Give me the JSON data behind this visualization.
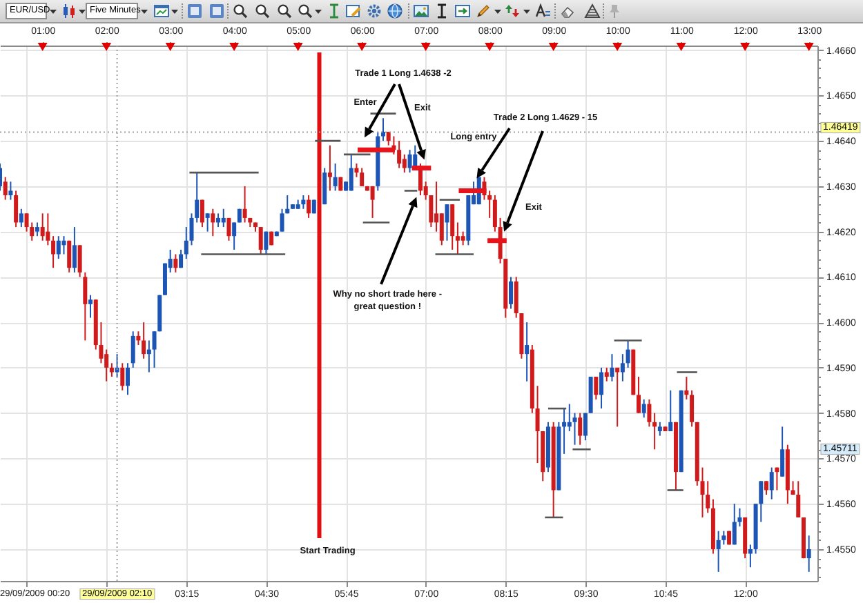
{
  "chart_data": {
    "type": "candlestick",
    "title": "EUR/USD",
    "subtitle": "Five Minutes",
    "x": [
      "2009-09-29T00:20",
      "2009-09-29T00:25",
      "2009-09-29T00:30",
      "2009-09-29T00:35",
      "2009-09-29T00:40",
      "2009-09-29T00:45",
      "2009-09-29T00:50",
      "2009-09-29T00:55",
      "2009-09-29T01:00",
      "2009-09-29T01:05",
      "2009-09-29T01:10",
      "2009-09-29T01:15",
      "2009-09-29T01:20",
      "2009-09-29T01:25",
      "2009-09-29T01:30",
      "2009-09-29T01:35",
      "2009-09-29T01:40",
      "2009-09-29T01:45",
      "2009-09-29T01:50",
      "2009-09-29T01:55",
      "2009-09-29T02:00",
      "2009-09-29T02:05",
      "2009-09-29T02:10",
      "2009-09-29T02:15",
      "2009-09-29T02:20",
      "2009-09-29T02:25",
      "2009-09-29T02:30",
      "2009-09-29T02:35",
      "2009-09-29T02:40",
      "2009-09-29T02:45",
      "2009-09-29T02:50",
      "2009-09-29T02:55",
      "2009-09-29T03:00",
      "2009-09-29T03:05",
      "2009-09-29T03:10",
      "2009-09-29T03:15",
      "2009-09-29T03:20",
      "2009-09-29T03:25",
      "2009-09-29T03:30",
      "2009-09-29T03:35",
      "2009-09-29T03:40",
      "2009-09-29T03:45",
      "2009-09-29T03:50",
      "2009-09-29T03:55",
      "2009-09-29T04:00",
      "2009-09-29T04:05",
      "2009-09-29T04:10",
      "2009-09-29T04:15",
      "2009-09-29T04:20",
      "2009-09-29T04:25",
      "2009-09-29T04:30",
      "2009-09-29T04:35",
      "2009-09-29T04:40",
      "2009-09-29T04:45",
      "2009-09-29T04:50",
      "2009-09-29T04:55",
      "2009-09-29T05:00",
      "2009-09-29T05:05",
      "2009-09-29T05:10",
      "2009-09-29T05:15",
      "2009-09-29T05:25",
      "2009-09-29T05:30",
      "2009-09-29T05:35",
      "2009-09-29T05:40",
      "2009-09-29T05:45",
      "2009-09-29T05:50",
      "2009-09-29T05:55",
      "2009-09-29T06:00",
      "2009-09-29T06:05",
      "2009-09-29T06:10",
      "2009-09-29T06:15",
      "2009-09-29T06:20",
      "2009-09-29T06:25",
      "2009-09-29T06:30",
      "2009-09-29T06:35",
      "2009-09-29T06:40",
      "2009-09-29T06:45",
      "2009-09-29T06:50",
      "2009-09-29T06:55",
      "2009-09-29T07:00",
      "2009-09-29T07:05",
      "2009-09-29T07:10",
      "2009-09-29T07:15",
      "2009-09-29T07:20",
      "2009-09-29T07:25",
      "2009-09-29T07:30",
      "2009-09-29T07:35",
      "2009-09-29T07:40",
      "2009-09-29T07:45",
      "2009-09-29T07:50",
      "2009-09-29T07:55",
      "2009-09-29T08:00",
      "2009-09-29T08:05",
      "2009-09-29T08:10",
      "2009-09-29T08:15",
      "2009-09-29T08:20",
      "2009-09-29T08:25",
      "2009-09-29T08:30",
      "2009-09-29T08:35",
      "2009-09-29T08:40",
      "2009-09-29T08:45",
      "2009-09-29T08:50",
      "2009-09-29T08:55",
      "2009-09-29T09:00",
      "2009-09-29T09:05",
      "2009-09-29T09:10",
      "2009-09-29T09:15",
      "2009-09-29T09:20",
      "2009-09-29T09:25",
      "2009-09-29T09:30",
      "2009-09-29T09:35",
      "2009-09-29T09:40",
      "2009-09-29T09:45",
      "2009-09-29T09:50",
      "2009-09-29T09:55",
      "2009-09-29T10:00",
      "2009-09-29T10:05",
      "2009-09-29T10:10",
      "2009-09-29T10:15",
      "2009-09-29T10:20",
      "2009-09-29T10:25",
      "2009-09-29T10:30",
      "2009-09-29T10:35",
      "2009-09-29T10:40",
      "2009-09-29T10:45",
      "2009-09-29T10:50",
      "2009-09-29T10:55",
      "2009-09-29T11:00",
      "2009-09-29T11:05",
      "2009-09-29T11:10",
      "2009-09-29T11:15",
      "2009-09-29T11:20",
      "2009-09-29T11:25",
      "2009-09-29T11:30",
      "2009-09-29T11:35",
      "2009-09-29T11:40",
      "2009-09-29T11:45",
      "2009-09-29T11:50",
      "2009-09-29T11:55",
      "2009-09-29T12:00",
      "2009-09-29T12:05",
      "2009-09-29T12:10",
      "2009-09-29T12:15",
      "2009-09-29T12:20",
      "2009-09-29T12:25",
      "2009-09-29T12:30",
      "2009-09-29T12:35",
      "2009-09-29T12:40",
      "2009-09-29T12:45",
      "2009-09-29T12:50",
      "2009-09-29T12:55",
      "2009-09-29T13:00"
    ],
    "ohlc": [
      [
        1.463,
        1.4635,
        1.4629,
        1.4634
      ],
      [
        1.4631,
        1.4632,
        1.4627,
        1.4628
      ],
      [
        1.4628,
        1.4631,
        1.4627,
        1.4629
      ],
      [
        1.4628,
        1.4629,
        1.4621,
        1.4622
      ],
      [
        1.4622,
        1.4625,
        1.4621,
        1.4624
      ],
      [
        1.4624,
        1.4624,
        1.462,
        1.4621
      ],
      [
        1.4621,
        1.4622,
        1.4618,
        1.4619
      ],
      [
        1.462,
        1.4622,
        1.4619,
        1.4621
      ],
      [
        1.4621,
        1.4624,
        1.4618,
        1.4619
      ],
      [
        1.462,
        1.4624,
        1.4617,
        1.4618
      ],
      [
        1.4618,
        1.4619,
        1.4612,
        1.4615
      ],
      [
        1.4615,
        1.4619,
        1.4614,
        1.4618
      ],
      [
        1.4617,
        1.4619,
        1.4615,
        1.4618
      ],
      [
        1.4618,
        1.4618,
        1.4611,
        1.4612
      ],
      [
        1.4612,
        1.4621,
        1.4611,
        1.4617
      ],
      [
        1.4617,
        1.4617,
        1.461,
        1.4611
      ],
      [
        1.461,
        1.4611,
        1.4596,
        1.4604
      ],
      [
        1.4604,
        1.4606,
        1.4601,
        1.4605
      ],
      [
        1.4605,
        1.4605,
        1.4594,
        1.4595
      ],
      [
        1.4595,
        1.46,
        1.4591,
        1.4592
      ],
      [
        1.4593,
        1.4594,
        1.4587,
        1.459
      ],
      [
        1.459,
        1.4591,
        1.4588,
        1.4589
      ],
      [
        1.4589,
        1.4593,
        1.4588,
        1.459
      ],
      [
        1.459,
        1.4591,
        1.4585,
        1.4586
      ],
      [
        1.4586,
        1.4591,
        1.4584,
        1.459
      ],
      [
        1.4591,
        1.4598,
        1.459,
        1.4597
      ],
      [
        1.4597,
        1.4598,
        1.4595,
        1.4596
      ],
      [
        1.4596,
        1.46,
        1.4592,
        1.4593
      ],
      [
        1.4593,
        1.4596,
        1.4589,
        1.4594
      ],
      [
        1.4594,
        1.4598,
        1.459,
        1.4598
      ],
      [
        1.4598,
        1.4606,
        1.4598,
        1.4606
      ],
      [
        1.4606,
        1.4613,
        1.4606,
        1.4613
      ],
      [
        1.4612,
        1.4616,
        1.4611,
        1.4614
      ],
      [
        1.4614,
        1.4615,
        1.4611,
        1.4612
      ],
      [
        1.4612,
        1.4616,
        1.4612,
        1.4615
      ],
      [
        1.4615,
        1.4621,
        1.4614,
        1.4618
      ],
      [
        1.4618,
        1.4624,
        1.4617,
        1.4623
      ],
      [
        1.4623,
        1.4633,
        1.4622,
        1.4627
      ],
      [
        1.4627,
        1.4627,
        1.4621,
        1.4622
      ],
      [
        1.4623,
        1.4624,
        1.462,
        1.4624
      ],
      [
        1.4624,
        1.4625,
        1.4619,
        1.4622
      ],
      [
        1.4622,
        1.4624,
        1.4621,
        1.4623
      ],
      [
        1.4622,
        1.4625,
        1.4621,
        1.4623
      ],
      [
        1.4623,
        1.4623,
        1.4618,
        1.4619
      ],
      [
        1.4619,
        1.4622,
        1.4616,
        1.4622
      ],
      [
        1.4622,
        1.4625,
        1.4622,
        1.4625
      ],
      [
        1.4625,
        1.463,
        1.4622,
        1.4623
      ],
      [
        1.4623,
        1.4623,
        1.4621,
        1.4622
      ],
      [
        1.4622,
        1.4622,
        1.462,
        1.4621
      ],
      [
        1.4621,
        1.4621,
        1.4615,
        1.4616
      ],
      [
        1.4616,
        1.462,
        1.4615,
        1.462
      ],
      [
        1.462,
        1.462,
        1.4617,
        1.4617
      ],
      [
        1.4619,
        1.462,
        1.4619,
        1.462
      ],
      [
        1.462,
        1.4625,
        1.462,
        1.4624
      ],
      [
        1.4624,
        1.4628,
        1.4624,
        1.4625
      ],
      [
        1.4625,
        1.4626,
        1.4625,
        1.4626
      ],
      [
        1.4625,
        1.4627,
        1.4625,
        1.4626
      ],
      [
        1.4626,
        1.4628,
        1.4625,
        1.4627
      ],
      [
        1.4627,
        1.4628,
        1.4623,
        1.4624
      ],
      [
        1.4624,
        1.4627,
        1.4624,
        1.4627
      ],
      [
        1.4626,
        1.4634,
        1.4626,
        1.4633
      ],
      [
        1.4633,
        1.4639,
        1.4629,
        1.4632
      ],
      [
        1.463,
        1.4635,
        1.4629,
        1.4632
      ],
      [
        1.4632,
        1.4632,
        1.4629,
        1.4629
      ],
      [
        1.4629,
        1.4631,
        1.4629,
        1.4631
      ],
      [
        1.4629,
        1.4637,
        1.4629,
        1.4634
      ],
      [
        1.4634,
        1.4635,
        1.4632,
        1.4633
      ],
      [
        1.4633,
        1.4634,
        1.463,
        1.463
      ],
      [
        1.463,
        1.463,
        1.4629,
        1.4629
      ],
      [
        1.463,
        1.463,
        1.4623,
        1.4627
      ],
      [
        1.463,
        1.4642,
        1.4629,
        1.4641
      ],
      [
        1.4641,
        1.4645,
        1.464,
        1.4642
      ],
      [
        1.4642,
        1.4642,
        1.4639,
        1.464
      ],
      [
        1.4639,
        1.4641,
        1.4637,
        1.4638
      ],
      [
        1.4638,
        1.464,
        1.4634,
        1.4635
      ],
      [
        1.4636,
        1.4637,
        1.4633,
        1.4634
      ],
      [
        1.4634,
        1.4638,
        1.4633,
        1.4637
      ],
      [
        1.4634,
        1.4639,
        1.4634,
        1.4637
      ],
      [
        1.4634,
        1.4635,
        1.4628,
        1.4629
      ],
      [
        1.463,
        1.4631,
        1.4627,
        1.4628
      ],
      [
        1.4628,
        1.4628,
        1.4621,
        1.4622
      ],
      [
        1.4624,
        1.4631,
        1.462,
        1.4622
      ],
      [
        1.4624,
        1.4624,
        1.4617,
        1.4618
      ],
      [
        1.4622,
        1.4626,
        1.4618,
        1.4626
      ],
      [
        1.4626,
        1.4626,
        1.4616,
        1.4619
      ],
      [
        1.4619,
        1.4622,
        1.4615,
        1.4618
      ],
      [
        1.4619,
        1.462,
        1.4617,
        1.4618
      ],
      [
        1.4618,
        1.4628,
        1.4617,
        1.4628
      ],
      [
        1.4626,
        1.4631,
        1.4626,
        1.4628
      ],
      [
        1.4626,
        1.4632,
        1.4626,
        1.4632
      ],
      [
        1.4631,
        1.4632,
        1.4627,
        1.4628
      ],
      [
        1.4628,
        1.4629,
        1.4623,
        1.4627
      ],
      [
        1.4627,
        1.4628,
        1.462,
        1.4621
      ],
      [
        1.4621,
        1.4623,
        1.4613,
        1.4614
      ],
      [
        1.4614,
        1.4614,
        1.4601,
        1.4603
      ],
      [
        1.4604,
        1.461,
        1.4603,
        1.4609
      ],
      [
        1.4609,
        1.461,
        1.4601,
        1.4602
      ],
      [
        1.4602,
        1.4602,
        1.4592,
        1.4593
      ],
      [
        1.4593,
        1.46,
        1.4587,
        1.4595
      ],
      [
        1.4594,
        1.4595,
        1.458,
        1.4581
      ],
      [
        1.4581,
        1.4586,
        1.4569,
        1.4576
      ],
      [
        1.4576,
        1.4576,
        1.4565,
        1.4567
      ],
      [
        1.4568,
        1.4578,
        1.4567,
        1.4577
      ],
      [
        1.4577,
        1.4578,
        1.4557,
        1.4563
      ],
      [
        1.4563,
        1.4578,
        1.4563,
        1.4577
      ],
      [
        1.4577,
        1.4581,
        1.4571,
        1.4578
      ],
      [
        1.4577,
        1.4582,
        1.4576,
        1.4578
      ],
      [
        1.4578,
        1.458,
        1.4573,
        1.4579
      ],
      [
        1.4579,
        1.458,
        1.4573,
        1.4575
      ],
      [
        1.4575,
        1.458,
        1.4574,
        1.458
      ],
      [
        1.458,
        1.4588,
        1.458,
        1.4588
      ],
      [
        1.4588,
        1.4588,
        1.4583,
        1.4584
      ],
      [
        1.4584,
        1.459,
        1.4581,
        1.4589
      ],
      [
        1.4589,
        1.459,
        1.4587,
        1.4588
      ],
      [
        1.4588,
        1.4593,
        1.4587,
        1.459
      ],
      [
        1.459,
        1.459,
        1.4577,
        1.4589
      ],
      [
        1.4589,
        1.4593,
        1.4587,
        1.4591
      ],
      [
        1.4591,
        1.4596,
        1.459,
        1.4594
      ],
      [
        1.4594,
        1.4594,
        1.4584,
        1.4584
      ],
      [
        1.4584,
        1.4588,
        1.458,
        1.458
      ],
      [
        1.458,
        1.4583,
        1.4579,
        1.4582
      ],
      [
        1.4582,
        1.4583,
        1.4577,
        1.4578
      ],
      [
        1.4578,
        1.458,
        1.4572,
        1.4577
      ],
      [
        1.4576,
        1.4578,
        1.4575,
        1.4577
      ],
      [
        1.4577,
        1.4577,
        1.4576,
        1.4576
      ],
      [
        1.4576,
        1.4585,
        1.4576,
        1.4578
      ],
      [
        1.4578,
        1.4578,
        1.4563,
        1.4567
      ],
      [
        1.4567,
        1.4585,
        1.4567,
        1.4585
      ],
      [
        1.4585,
        1.4588,
        1.4583,
        1.4584
      ],
      [
        1.4584,
        1.4585,
        1.4577,
        1.4578
      ],
      [
        1.4578,
        1.4578,
        1.4564,
        1.4565
      ],
      [
        1.4565,
        1.4568,
        1.4557,
        1.4562
      ],
      [
        1.4562,
        1.4565,
        1.4558,
        1.4559
      ],
      [
        1.4559,
        1.4561,
        1.4549,
        1.455
      ],
      [
        1.455,
        1.4554,
        1.4545,
        1.4552
      ],
      [
        1.4552,
        1.4554,
        1.4551,
        1.4553
      ],
      [
        1.4554,
        1.4554,
        1.4551,
        1.4551
      ],
      [
        1.4551,
        1.456,
        1.4551,
        1.4556
      ],
      [
        1.4556,
        1.4559,
        1.4555,
        1.4557
      ],
      [
        1.4557,
        1.4557,
        1.4548,
        1.4549
      ],
      [
        1.4549,
        1.4551,
        1.4546,
        1.455
      ],
      [
        1.455,
        1.456,
        1.4549,
        1.456
      ],
      [
        1.456,
        1.4565,
        1.4556,
        1.4565
      ],
      [
        1.4565,
        1.4565,
        1.4562,
        1.4563
      ],
      [
        1.4563,
        1.4568,
        1.4561,
        1.4567
      ],
      [
        1.4568,
        1.4568,
        1.4563,
        1.4567
      ],
      [
        1.4566,
        1.4577,
        1.4566,
        1.4572
      ],
      [
        1.4572,
        1.4573,
        1.456,
        1.4563
      ],
      [
        1.4563,
        1.4565,
        1.4562,
        1.4562
      ],
      [
        1.4562,
        1.4565,
        1.4557,
        1.4557
      ],
      [
        1.4557,
        1.4557,
        1.4548,
        1.4548
      ],
      [
        1.4548,
        1.4553,
        1.4545,
        1.455
      ]
    ],
    "colors": [
      "#1d55b5",
      "#cf1b1b",
      "#1d55b5",
      "#cf1b1b",
      "#1d55b5",
      "#cf1b1b",
      "#cf1b1b",
      "#1d55b5",
      "#cf1b1b",
      "#cf1b1b",
      "#cf1b1b",
      "#1d55b5",
      "#1d55b5",
      "#cf1b1b",
      "#1d55b5",
      "#cf1b1b",
      "#cf1b1b",
      "#1d55b5",
      "#cf1b1b",
      "#cf1b1b",
      "#cf1b1b",
      "#cf1b1b",
      "#1d55b5",
      "#cf1b1b",
      "#1d55b5",
      "#1d55b5",
      "#cf1b1b",
      "#cf1b1b",
      "#1d55b5",
      "#1d55b5",
      "#1d55b5",
      "#1d55b5",
      "#1d55b5",
      "#cf1b1b",
      "#1d55b5",
      "#1d55b5",
      "#1d55b5",
      "#1d55b5",
      "#cf1b1b",
      "#1d55b5",
      "#cf1b1b",
      "#1d55b5",
      "#1d55b5",
      "#cf1b1b",
      "#1d55b5",
      "#1d55b5",
      "#cf1b1b",
      "#cf1b1b",
      "#cf1b1b",
      "#cf1b1b",
      "#1d55b5",
      "#cf1b1b",
      "#1d55b5",
      "#1d55b5",
      "#1d55b5",
      "#1d55b5",
      "#1d55b5",
      "#1d55b5",
      "#cf1b1b",
      "#1d55b5",
      "#1d55b5",
      "#cf1b1b",
      "#1d55b5",
      "#cf1b1b",
      "#1d55b5",
      "#1d55b5",
      "#cf1b1b",
      "#cf1b1b",
      "#cf1b1b",
      "#cf1b1b",
      "#1d55b5",
      "#1d55b5",
      "#cf1b1b",
      "#cf1b1b",
      "#cf1b1b",
      "#cf1b1b",
      "#1d55b5",
      "#1d55b5",
      "#cf1b1b",
      "#cf1b1b",
      "#cf1b1b",
      "#cf1b1b",
      "#cf1b1b",
      "#1d55b5",
      "#cf1b1b",
      "#cf1b1b",
      "#cf1b1b",
      "#1d55b5",
      "#1d55b5",
      "#1d55b5",
      "#cf1b1b",
      "#cf1b1b",
      "#cf1b1b",
      "#cf1b1b",
      "#cf1b1b",
      "#1d55b5",
      "#cf1b1b",
      "#cf1b1b",
      "#1d55b5",
      "#cf1b1b",
      "#cf1b1b",
      "#cf1b1b",
      "#1d55b5",
      "#cf1b1b",
      "#1d55b5",
      "#1d55b5",
      "#1d55b5",
      "#1d55b5",
      "#cf1b1b",
      "#1d55b5",
      "#1d55b5",
      "#cf1b1b",
      "#1d55b5",
      "#cf1b1b",
      "#1d55b5",
      "#cf1b1b",
      "#1d55b5",
      "#1d55b5",
      "#cf1b1b",
      "#cf1b1b",
      "#1d55b5",
      "#cf1b1b",
      "#cf1b1b",
      "#1d55b5",
      "#cf1b1b",
      "#1d55b5",
      "#cf1b1b",
      "#1d55b5",
      "#cf1b1b",
      "#cf1b1b",
      "#cf1b1b",
      "#cf1b1b",
      "#cf1b1b",
      "#cf1b1b",
      "#1d55b5",
      "#1d55b5",
      "#cf1b1b",
      "#1d55b5",
      "#1d55b5",
      "#cf1b1b",
      "#1d55b5",
      "#1d55b5",
      "#1d55b5",
      "#cf1b1b",
      "#1d55b5",
      "#cf1b1b",
      "#1d55b5",
      "#cf1b1b",
      "#cf1b1b",
      "#cf1b1b",
      "#cf1b1b",
      "#1d55b5"
    ],
    "series": [
      {
        "type": "line",
        "color": "#e8141c",
        "x": [
          "2009-09-29T05:56",
          "2009-09-29T06:31"
        ],
        "values": [
          1.4638,
          1.4638
        ]
      },
      {
        "type": "line",
        "color": "#e8141c",
        "x": [
          "2009-09-29T06:47",
          "2009-09-29T07:05"
        ],
        "values": [
          1.4634,
          1.4634
        ]
      },
      {
        "type": "line",
        "color": "#e8141c",
        "x": [
          "2009-09-29T07:31",
          "2009-09-29T07:57"
        ],
        "values": [
          1.4629,
          1.4629
        ]
      },
      {
        "type": "line",
        "color": "#e8141c",
        "x": [
          "2009-09-29T07:58",
          "2009-09-29T08:16"
        ],
        "values": [
          1.4618,
          1.4618
        ]
      },
      {
        "type": "line",
        "color": "#555555",
        "x": [
          "2009-09-29T03:18",
          "2009-09-29T04:23"
        ],
        "values": [
          1.4633,
          1.4633
        ]
      },
      {
        "type": "line",
        "color": "#555555",
        "x": [
          "2009-09-29T03:29",
          "2009-09-29T04:48"
        ],
        "values": [
          1.4615,
          1.4615
        ]
      },
      {
        "type": "line",
        "color": "#555555",
        "x": [
          "2009-09-29T05:16",
          "2009-09-29T05:40"
        ],
        "values": [
          1.464,
          1.464
        ]
      },
      {
        "type": "line",
        "color": "#555555",
        "x": [
          "2009-09-29T05:43",
          "2009-09-29T06:08"
        ],
        "values": [
          1.4637,
          1.4637
        ]
      },
      {
        "type": "line",
        "color": "#555555",
        "x": [
          "2009-09-29T06:08",
          "2009-09-29T06:32"
        ],
        "values": [
          1.4646,
          1.4646
        ]
      },
      {
        "type": "line",
        "color": "#555555",
        "x": [
          "2009-09-29T06:01",
          "2009-09-29T06:26"
        ],
        "values": [
          1.4622,
          1.4622
        ]
      },
      {
        "type": "line",
        "color": "#555555",
        "x": [
          "2009-09-29T06:40",
          "2009-09-29T06:52"
        ],
        "values": [
          1.4629,
          1.4629
        ]
      },
      {
        "type": "line",
        "color": "#555555",
        "x": [
          "2009-09-29T07:13",
          "2009-09-29T07:32"
        ],
        "values": [
          1.4627,
          1.4627
        ]
      },
      {
        "type": "line",
        "color": "#555555",
        "x": [
          "2009-09-29T07:09",
          "2009-09-29T07:45"
        ],
        "values": [
          1.4615,
          1.4615
        ]
      },
      {
        "type": "line",
        "color": "#555555",
        "x": [
          "2009-09-29T08:55",
          "2009-09-29T09:12"
        ],
        "values": [
          1.4581,
          1.4581
        ]
      },
      {
        "type": "line",
        "color": "#555555",
        "x": [
          "2009-09-29T08:52",
          "2009-09-29T09:09"
        ],
        "values": [
          1.4557,
          1.4557
        ]
      },
      {
        "type": "line",
        "color": "#555555",
        "x": [
          "2009-09-29T09:18",
          "2009-09-29T09:35"
        ],
        "values": [
          1.4572,
          1.4572
        ]
      },
      {
        "type": "line",
        "color": "#555555",
        "x": [
          "2009-09-29T09:57",
          "2009-09-29T10:23"
        ],
        "values": [
          1.4596,
          1.4596
        ]
      },
      {
        "type": "line",
        "color": "#555555",
        "x": [
          "2009-09-29T10:56",
          "2009-09-29T11:15"
        ],
        "values": [
          1.4589,
          1.4589
        ]
      },
      {
        "type": "line",
        "color": "#555555",
        "x": [
          "2009-09-29T10:47",
          "2009-09-29T11:02"
        ],
        "values": [
          1.4563,
          1.4563
        ]
      }
    ],
    "xlim": [
      "2009-09-29T00:20",
      "2009-09-29T13:08"
    ],
    "xticks": [
      {
        "value": "2009-09-29T00:45",
        "label": null
      },
      {
        "value": "2009-09-29T02:00",
        "label": null
      },
      {
        "value": "2009-09-29T03:15",
        "label": "03:15"
      },
      {
        "value": "2009-09-29T04:30",
        "label": "04:30"
      },
      {
        "value": "2009-09-29T05:45",
        "label": "05:45"
      },
      {
        "value": "2009-09-29T07:00",
        "label": "07:00"
      },
      {
        "value": "2009-09-29T08:15",
        "label": "08:15"
      },
      {
        "value": "2009-09-29T09:30",
        "label": "09:30"
      },
      {
        "value": "2009-09-29T10:45",
        "label": "10:45"
      },
      {
        "value": "2009-09-29T12:00",
        "label": "12:00"
      }
    ],
    "x2lim": [
      "2009-09-29T00:20",
      "2009-09-29T13:08"
    ],
    "x2ticks": [
      {
        "value": "2009-09-29T01:00",
        "label": "01:00"
      },
      {
        "value": "2009-09-29T02:00",
        "label": "02:00"
      },
      {
        "value": "2009-09-29T03:00",
        "label": "03:00"
      },
      {
        "value": "2009-09-29T04:00",
        "label": "04:00"
      },
      {
        "value": "2009-09-29T05:00",
        "label": "05:00"
      },
      {
        "value": "2009-09-29T06:00",
        "label": "06:00"
      },
      {
        "value": "2009-09-29T07:00",
        "label": "07:00"
      },
      {
        "value": "2009-09-29T08:00",
        "label": "08:00"
      },
      {
        "value": "2009-09-29T09:00",
        "label": "09:00"
      },
      {
        "value": "2009-09-29T10:00",
        "label": "10:00"
      },
      {
        "value": "2009-09-29T11:00",
        "label": "11:00"
      },
      {
        "value": "2009-09-29T12:00",
        "label": "12:00"
      },
      {
        "value": "2009-09-29T13:00",
        "label": "13:00"
      }
    ],
    "ylim": [
      1.4543,
      1.4661
    ],
    "yticks": [
      {
        "value": 1.4544,
        "label": null
      },
      {
        "value": 1.4546,
        "label": null
      },
      {
        "value": 1.4548,
        "label": null
      },
      {
        "value": 1.455,
        "label": "1.4550"
      },
      {
        "value": 1.4552,
        "label": null
      },
      {
        "value": 1.4554,
        "label": null
      },
      {
        "value": 1.4556,
        "label": null
      },
      {
        "value": 1.4558,
        "label": null
      },
      {
        "value": 1.456,
        "label": "1.4560"
      },
      {
        "value": 1.4562,
        "label": null
      },
      {
        "value": 1.4564,
        "label": null
      },
      {
        "value": 1.4566,
        "label": null
      },
      {
        "value": 1.4568,
        "label": null
      },
      {
        "value": 1.457,
        "label": "1.4570"
      },
      {
        "value": 1.4572,
        "label": null
      },
      {
        "value": 1.4574,
        "label": null
      },
      {
        "value": 1.4576,
        "label": null
      },
      {
        "value": 1.4578,
        "label": null
      },
      {
        "value": 1.458,
        "label": "1.4580"
      },
      {
        "value": 1.4582,
        "label": null
      },
      {
        "value": 1.4584,
        "label": null
      },
      {
        "value": 1.4586,
        "label": null
      },
      {
        "value": 1.4588,
        "label": null
      },
      {
        "value": 1.459,
        "label": "1.4590"
      },
      {
        "value": 1.4592,
        "label": null
      },
      {
        "value": 1.4594,
        "label": null
      },
      {
        "value": 1.4596,
        "label": null
      },
      {
        "value": 1.4598,
        "label": null
      },
      {
        "value": 1.46,
        "label": "1.4600"
      },
      {
        "value": 1.4602,
        "label": null
      },
      {
        "value": 1.4604,
        "label": null
      },
      {
        "value": 1.4606,
        "label": null
      },
      {
        "value": 1.4608,
        "label": null
      },
      {
        "value": 1.461,
        "label": "1.4610"
      },
      {
        "value": 1.4612,
        "label": null
      },
      {
        "value": 1.4614,
        "label": null
      },
      {
        "value": 1.4616,
        "label": null
      },
      {
        "value": 1.4618,
        "label": null
      },
      {
        "value": 1.462,
        "label": "1.4620"
      },
      {
        "value": 1.4622,
        "label": null
      },
      {
        "value": 1.4624,
        "label": null
      },
      {
        "value": 1.4626,
        "label": null
      },
      {
        "value": 1.4628,
        "label": null
      },
      {
        "value": 1.463,
        "label": "1.4630"
      },
      {
        "value": 1.4632,
        "label": null
      },
      {
        "value": 1.4634,
        "label": null
      },
      {
        "value": 1.4636,
        "label": null
      },
      {
        "value": 1.4638,
        "label": null
      },
      {
        "value": 1.464,
        "label": "1.4640"
      },
      {
        "value": 1.4642,
        "label": null
      },
      {
        "value": 1.4644,
        "label": null
      },
      {
        "value": 1.4646,
        "label": null
      },
      {
        "value": 1.4648,
        "label": null
      },
      {
        "value": 1.465,
        "label": "1.4650"
      },
      {
        "value": 1.4652,
        "label": null
      },
      {
        "value": 1.4654,
        "label": null
      },
      {
        "value": 1.4656,
        "label": null
      },
      {
        "value": 1.4658,
        "label": null
      },
      {
        "value": 1.466,
        "label": "1.4660"
      }
    ],
    "grid": true,
    "ref_lines": [
      {
        "axis": "x",
        "value": "2009-09-29T05:20",
        "label": "Start Trading",
        "color": "#e01010",
        "line_style": "solid"
      },
      {
        "axis": "x",
        "value": "2009-09-29T02:10",
        "label": "29/09/2009 02:10",
        "color": "#a0a0a0",
        "line_style": "dotted"
      },
      {
        "axis": "y",
        "value": 1.46419,
        "label": "1.46419",
        "color": "#a0a0a0",
        "line_style": "dotted"
      }
    ],
    "annotations": [
      "Trade 1 Long 1.4638 -2",
      "Enter",
      "Exit",
      "Trade 2 Long 1.4629 - 15",
      "Long entry",
      "Exit",
      {
        "text": "Why no short trade here -\ngreat question !",
        "x": "2009-09-29T06:50",
        "y": 1.4627
      },
      "29/09/2009 00:20",
      "1.45711"
    ]
  }
}
